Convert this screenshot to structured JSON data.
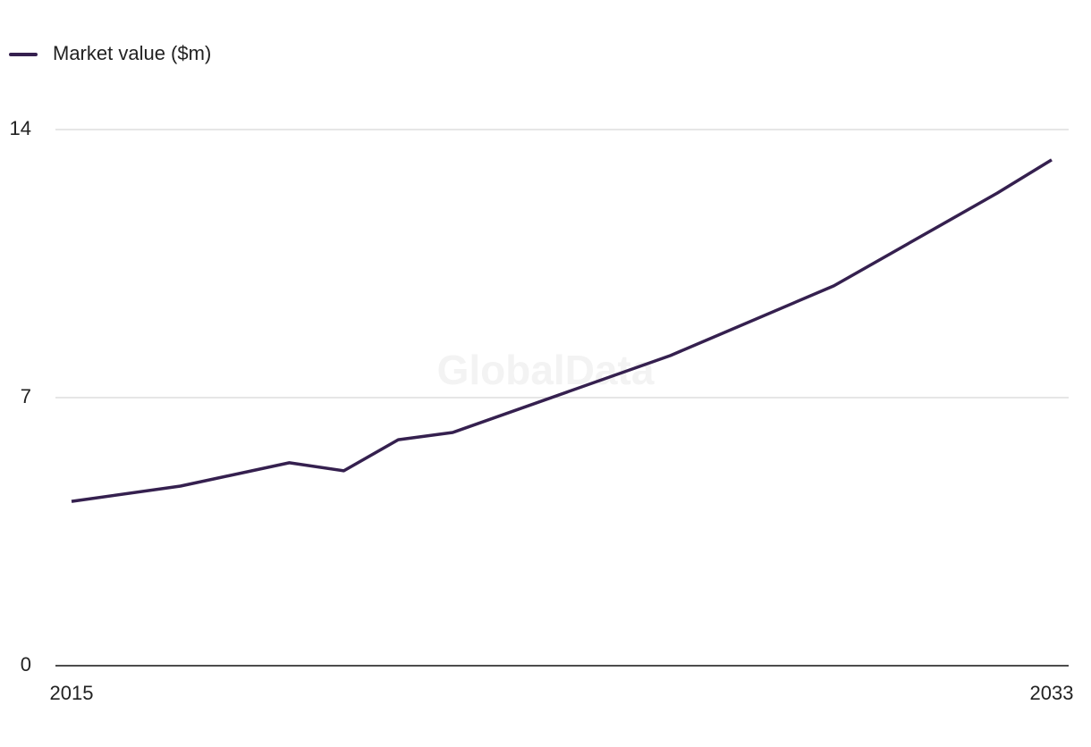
{
  "chart_data": {
    "type": "line",
    "watermark": "GlobalData",
    "x": [
      2015,
      2017,
      2019,
      2020,
      2021,
      2022,
      2026,
      2029,
      2032,
      2033
    ],
    "series": [
      {
        "name": "Market value ($m)",
        "color": "#35204f",
        "values": [
          4.29,
          4.69,
          5.3,
          5.09,
          5.9,
          6.09,
          8.1,
          9.92,
          12.34,
          13.21
        ]
      }
    ],
    "xlim": [
      2015,
      2033
    ],
    "xticks": [
      2015,
      2033
    ],
    "ylim": [
      0,
      14
    ],
    "yticks": [
      0,
      7,
      14
    ],
    "grid": true,
    "legend": "top-left"
  }
}
